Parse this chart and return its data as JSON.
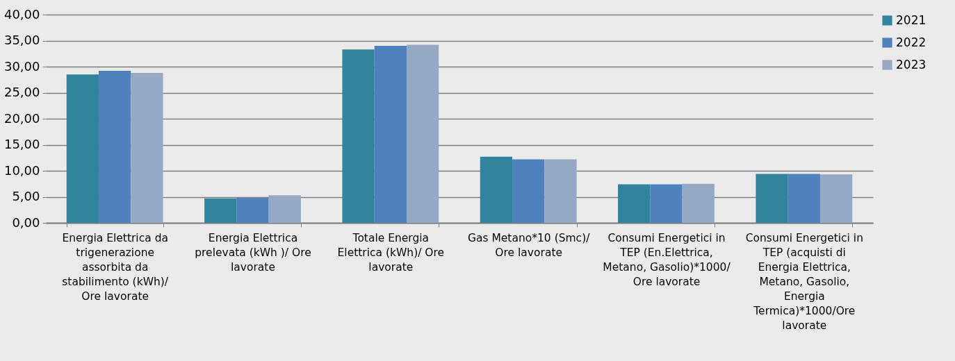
{
  "chart_data": {
    "type": "bar",
    "categories": [
      "Energia Elettrica da trigenerazione assorbita da stabilimento (kWh)/ Ore lavorate",
      "Energia Elettrica prelevata (kWh )/ Ore lavorate",
      "Totale Energia Elettrica (kWh)/ Ore lavorate",
      "Gas Metano*10 (Smc)/ Ore lavorate",
      "Consumi Energetici in TEP (En.Elettrica, Metano, Gasolio)*1000/ Ore lavorate",
      "Consumi Energetici in TEP (acquisti di Energia Elettrica, Metano, Gasolio, Energia Termica)*1000/Ore lavorate"
    ],
    "series": [
      {
        "name": "2021",
        "color": "#31849b",
        "values": [
          28.5,
          4.7,
          33.3,
          12.7,
          7.4,
          9.4
        ]
      },
      {
        "name": "2022",
        "color": "#4f81bd",
        "values": [
          29.2,
          4.8,
          34.0,
          12.2,
          7.4,
          9.4
        ]
      },
      {
        "name": "2023",
        "color": "#95a8c4",
        "values": [
          28.8,
          5.3,
          34.2,
          12.2,
          7.5,
          9.3
        ]
      }
    ],
    "ylim": [
      0,
      40
    ],
    "yticks": [
      {
        "value": 0,
        "label": "0,00"
      },
      {
        "value": 5,
        "label": "5,00"
      },
      {
        "value": 10,
        "label": "10,00"
      },
      {
        "value": 15,
        "label": "15,00"
      },
      {
        "value": 20,
        "label": "20,00"
      },
      {
        "value": 25,
        "label": "25,00"
      },
      {
        "value": 30,
        "label": "30,00"
      },
      {
        "value": 35,
        "label": "35,00"
      },
      {
        "value": 40,
        "label": "40,00"
      }
    ],
    "grid": "y",
    "legend": "right"
  }
}
